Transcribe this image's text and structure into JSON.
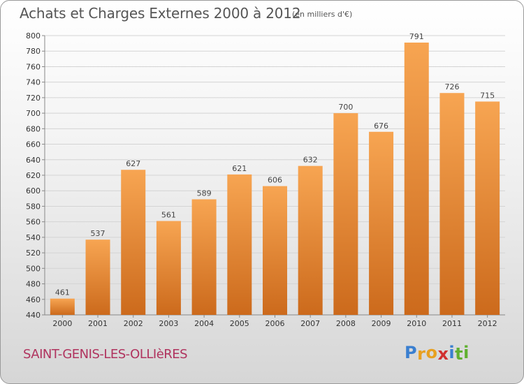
{
  "title": "Achats et Charges Externes 2000 à 2012",
  "subtitle": "(en milliers d'€)",
  "commune": "SAINT-GENIS-LES-OLLIèRES",
  "logo": {
    "letters": [
      "P",
      "r",
      "o",
      "x",
      "i",
      "t",
      "i"
    ],
    "colors": [
      "#3a7fd0",
      "#e8a020",
      "#e8a020",
      "#d03030",
      "#3a7fd0",
      "#60b030",
      "#60b030"
    ]
  },
  "colors": {
    "bar_top": "#f7a552",
    "bar_bottom": "#cc6a1c",
    "label": "#444444"
  },
  "chart_data": {
    "type": "bar",
    "title": "Achats et Charges Externes 2000 à 2012",
    "subtitle": "(en milliers d'€)",
    "categories": [
      "2000",
      "2001",
      "2002",
      "2003",
      "2004",
      "2005",
      "2006",
      "2007",
      "2008",
      "2009",
      "2010",
      "2011",
      "2012"
    ],
    "values": [
      461,
      537,
      627,
      561,
      589,
      621,
      606,
      632,
      700,
      676,
      791,
      726,
      715
    ],
    "data_labels": [
      "461",
      "537",
      "627",
      "561",
      "589",
      "621",
      "606",
      "632",
      "700",
      "676",
      "791",
      "726",
      "715"
    ],
    "ylim": [
      440,
      800
    ],
    "yticks": [
      "440",
      "460",
      "480",
      "500",
      "520",
      "540",
      "560",
      "580",
      "600",
      "620",
      "640",
      "660",
      "680",
      "700",
      "720",
      "740",
      "760",
      "780",
      "800"
    ],
    "grid": true,
    "xlabel": "",
    "ylabel": ""
  }
}
